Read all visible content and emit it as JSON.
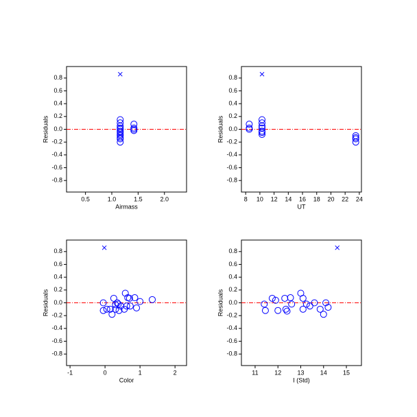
{
  "chart_data": [
    {
      "type": "scatter",
      "xlabel": "Airmass",
      "ylabel": "Residuals",
      "xlim": [
        0.14,
        2.42
      ],
      "ylim": [
        -0.98,
        0.98
      ],
      "xticks": [
        0.5,
        {
          "value": 1,
          "label": "1.0"
        },
        1.5,
        {
          "value": 2,
          "label": "2.0"
        }
      ],
      "yticks": [
        0.8,
        0.6,
        0.4,
        0.2,
        {
          "value": 0,
          "label": "0.0"
        },
        -0.2,
        -0.4,
        -0.6,
        -0.8
      ],
      "hline": 0,
      "hline_color": "#ff0000",
      "series": [
        {
          "marker": "circle",
          "color": "#0000ff",
          "x": [
            1.16,
            1.16,
            1.16,
            1.16,
            1.16,
            1.16,
            1.16,
            1.16,
            1.16,
            1.16,
            1.16,
            1.16,
            1.42,
            1.42,
            1.42,
            1.42
          ],
          "y": [
            0.15,
            0.1,
            0.05,
            0.02,
            0,
            -0.03,
            -0.05,
            -0.08,
            -0.1,
            -0.13,
            -0.15,
            -0.2,
            0.08,
            0.02,
            0,
            -0.02
          ]
        },
        {
          "marker": "x",
          "color": "#0000ff",
          "x": [
            1.16
          ],
          "y": [
            0.86
          ]
        }
      ]
    },
    {
      "type": "scatter",
      "xlabel": "UT",
      "ylabel": "Residuals",
      "xlim": [
        7.4,
        24.3
      ],
      "ylim": [
        -0.98,
        0.98
      ],
      "xticks": [
        8,
        10,
        12,
        14,
        16,
        18,
        20,
        22,
        24
      ],
      "yticks": [
        0.8,
        0.6,
        0.4,
        0.2,
        {
          "value": 0,
          "label": "0.0"
        },
        -0.2,
        -0.4,
        -0.6,
        -0.8
      ],
      "hline": 0,
      "hline_color": "#ff0000",
      "series": [
        {
          "marker": "circle",
          "color": "#0000ff",
          "x": [
            8.5,
            8.5,
            8.5,
            10.3,
            10.3,
            10.3,
            10.3,
            10.3,
            10.3,
            10.3,
            23.5,
            23.5,
            23.5,
            23.5
          ],
          "y": [
            0.08,
            0.02,
            0,
            0.15,
            0.1,
            0.05,
            0.02,
            -0.03,
            -0.05,
            -0.08,
            -0.1,
            -0.13,
            -0.15,
            -0.2
          ]
        },
        {
          "marker": "x",
          "color": "#0000ff",
          "x": [
            10.3
          ],
          "y": [
            0.86
          ]
        }
      ]
    },
    {
      "type": "scatter",
      "xlabel": "Color",
      "ylabel": "Residuals",
      "xlim": [
        -1.1,
        2.33
      ],
      "ylim": [
        -0.98,
        0.98
      ],
      "xticks": [
        -1,
        0,
        1,
        2
      ],
      "yticks": [
        0.8,
        0.6,
        0.4,
        0.2,
        {
          "value": 0,
          "label": "0.0"
        },
        -0.2,
        -0.4,
        -0.6,
        -0.8
      ],
      "hline": 0,
      "hline_color": "#ff0000",
      "series": [
        {
          "marker": "circle",
          "color": "#0000ff",
          "x": [
            -0.05,
            -0.05,
            0.05,
            0.15,
            0.2,
            0.25,
            0.3,
            0.3,
            0.35,
            0.38,
            0.4,
            0.45,
            0.55,
            0.58,
            0.62,
            0.65,
            0.7,
            0.72,
            0.85,
            0.9,
            1.0,
            1.35
          ],
          "y": [
            0.0,
            -0.12,
            -0.1,
            -0.1,
            -0.18,
            0.07,
            -0.03,
            -0.1,
            0.0,
            -0.02,
            -0.12,
            -0.05,
            -0.1,
            0.15,
            -0.05,
            0.08,
            0.07,
            -0.05,
            0.08,
            -0.08,
            0.02,
            0.05
          ]
        },
        {
          "marker": "x",
          "color": "#0000ff",
          "x": [
            -0.02
          ],
          "y": [
            0.86
          ]
        }
      ]
    },
    {
      "type": "scatter",
      "xlabel": "I (Std)",
      "ylabel": "Residuals",
      "xlim": [
        10.4,
        15.66
      ],
      "ylim": [
        -0.98,
        0.98
      ],
      "xticks": [
        11,
        12,
        13,
        14,
        15
      ],
      "yticks": [
        0.8,
        0.6,
        0.4,
        0.2,
        {
          "value": 0,
          "label": "0.0"
        },
        -0.2,
        -0.4,
        -0.6,
        -0.8
      ],
      "hline": 0,
      "hline_color": "#ff0000",
      "series": [
        {
          "marker": "circle",
          "color": "#0000ff",
          "x": [
            11.4,
            11.45,
            11.75,
            11.9,
            12.0,
            12.3,
            12.35,
            12.4,
            12.55,
            12.6,
            13.0,
            13.1,
            13.1,
            13.25,
            13.4,
            13.6,
            13.85,
            14.0,
            14.1,
            14.2
          ],
          "y": [
            -0.02,
            -0.12,
            0.07,
            0.04,
            -0.12,
            0.07,
            -0.1,
            -0.13,
            0.08,
            -0.02,
            0.15,
            0.07,
            -0.1,
            -0.02,
            -0.05,
            0.0,
            -0.1,
            -0.18,
            0.0,
            -0.07
          ]
        },
        {
          "marker": "x",
          "color": "#0000ff",
          "x": [
            14.6
          ],
          "y": [
            0.86
          ]
        }
      ]
    }
  ]
}
